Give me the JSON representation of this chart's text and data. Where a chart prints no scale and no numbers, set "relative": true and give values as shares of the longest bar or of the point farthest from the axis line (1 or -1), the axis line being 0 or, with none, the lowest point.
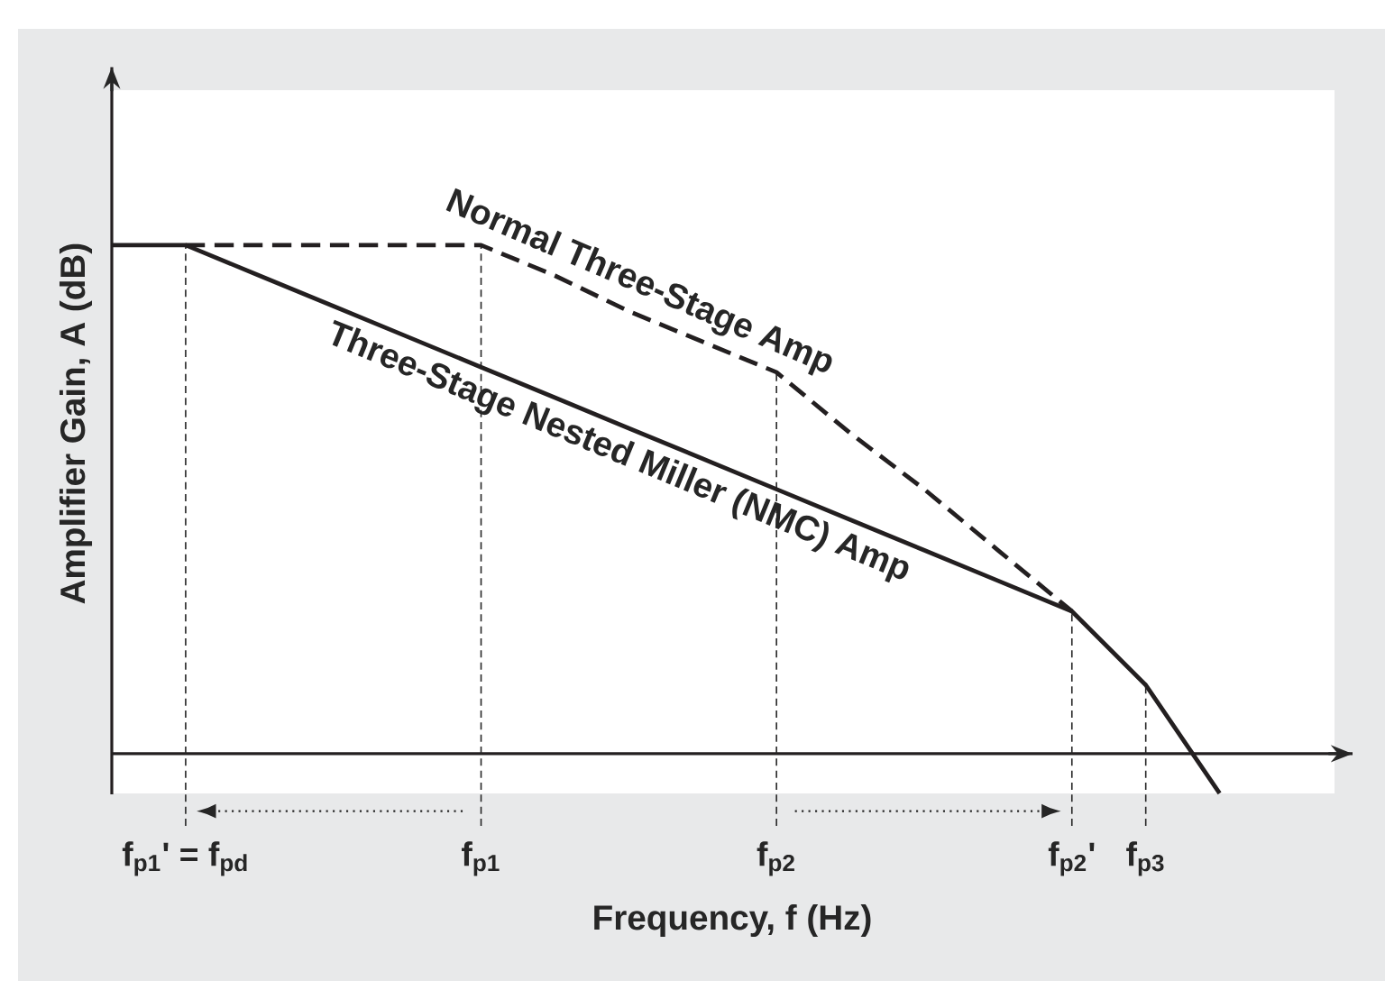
{
  "chart_data": {
    "type": "line",
    "relative": true,
    "xlabel": "Frequency, f (Hz)",
    "ylabel": "Amplifier Gain, A (dB)",
    "categories": [
      null,
      "f$_{p1}$' = f$_{pd}$",
      null,
      null,
      null,
      "f$_{p1}$",
      null,
      null,
      null,
      "f$_{p2}$",
      null,
      null,
      null,
      "f$_{p2}$'",
      "f$_{p3}$",
      null
    ],
    "series": [
      {
        "name": "Normal Three-Stage Amp",
        "color": "#231f20",
        "line_style": "dashed",
        "values": [
          null,
          1,
          1,
          1,
          1,
          1,
          0.94,
          0.87,
          0.81,
          0.75,
          0.63,
          0.52,
          0.4,
          0.28,
          null,
          null
        ]
      },
      {
        "name": "Three-Stage Nested Miller (NMC) Amp",
        "color": "#231f20",
        "line_style": "solid",
        "values": [
          1,
          1,
          0.94,
          0.88,
          0.82,
          0.76,
          0.7,
          0.64,
          0.58,
          0.52,
          0.46,
          0.4,
          0.34,
          0.28,
          0.135,
          -0.078
        ]
      }
    ],
    "ref_lines": [
      {
        "axis": "x",
        "value": "f$_{p1}$' = f$_{pd}$",
        "line_style": "dashed"
      },
      {
        "axis": "x",
        "value": "f$_{p1}$",
        "line_style": "dashed"
      },
      {
        "axis": "x",
        "value": "f$_{p2}$",
        "line_style": "dashed"
      },
      {
        "axis": "x",
        "value": "f$_{p2}$'",
        "line_style": "dashed"
      },
      {
        "axis": "x",
        "value": "f$_{p3}$",
        "line_style": "dashed"
      }
    ],
    "grid": false,
    "marker": "none"
  }
}
